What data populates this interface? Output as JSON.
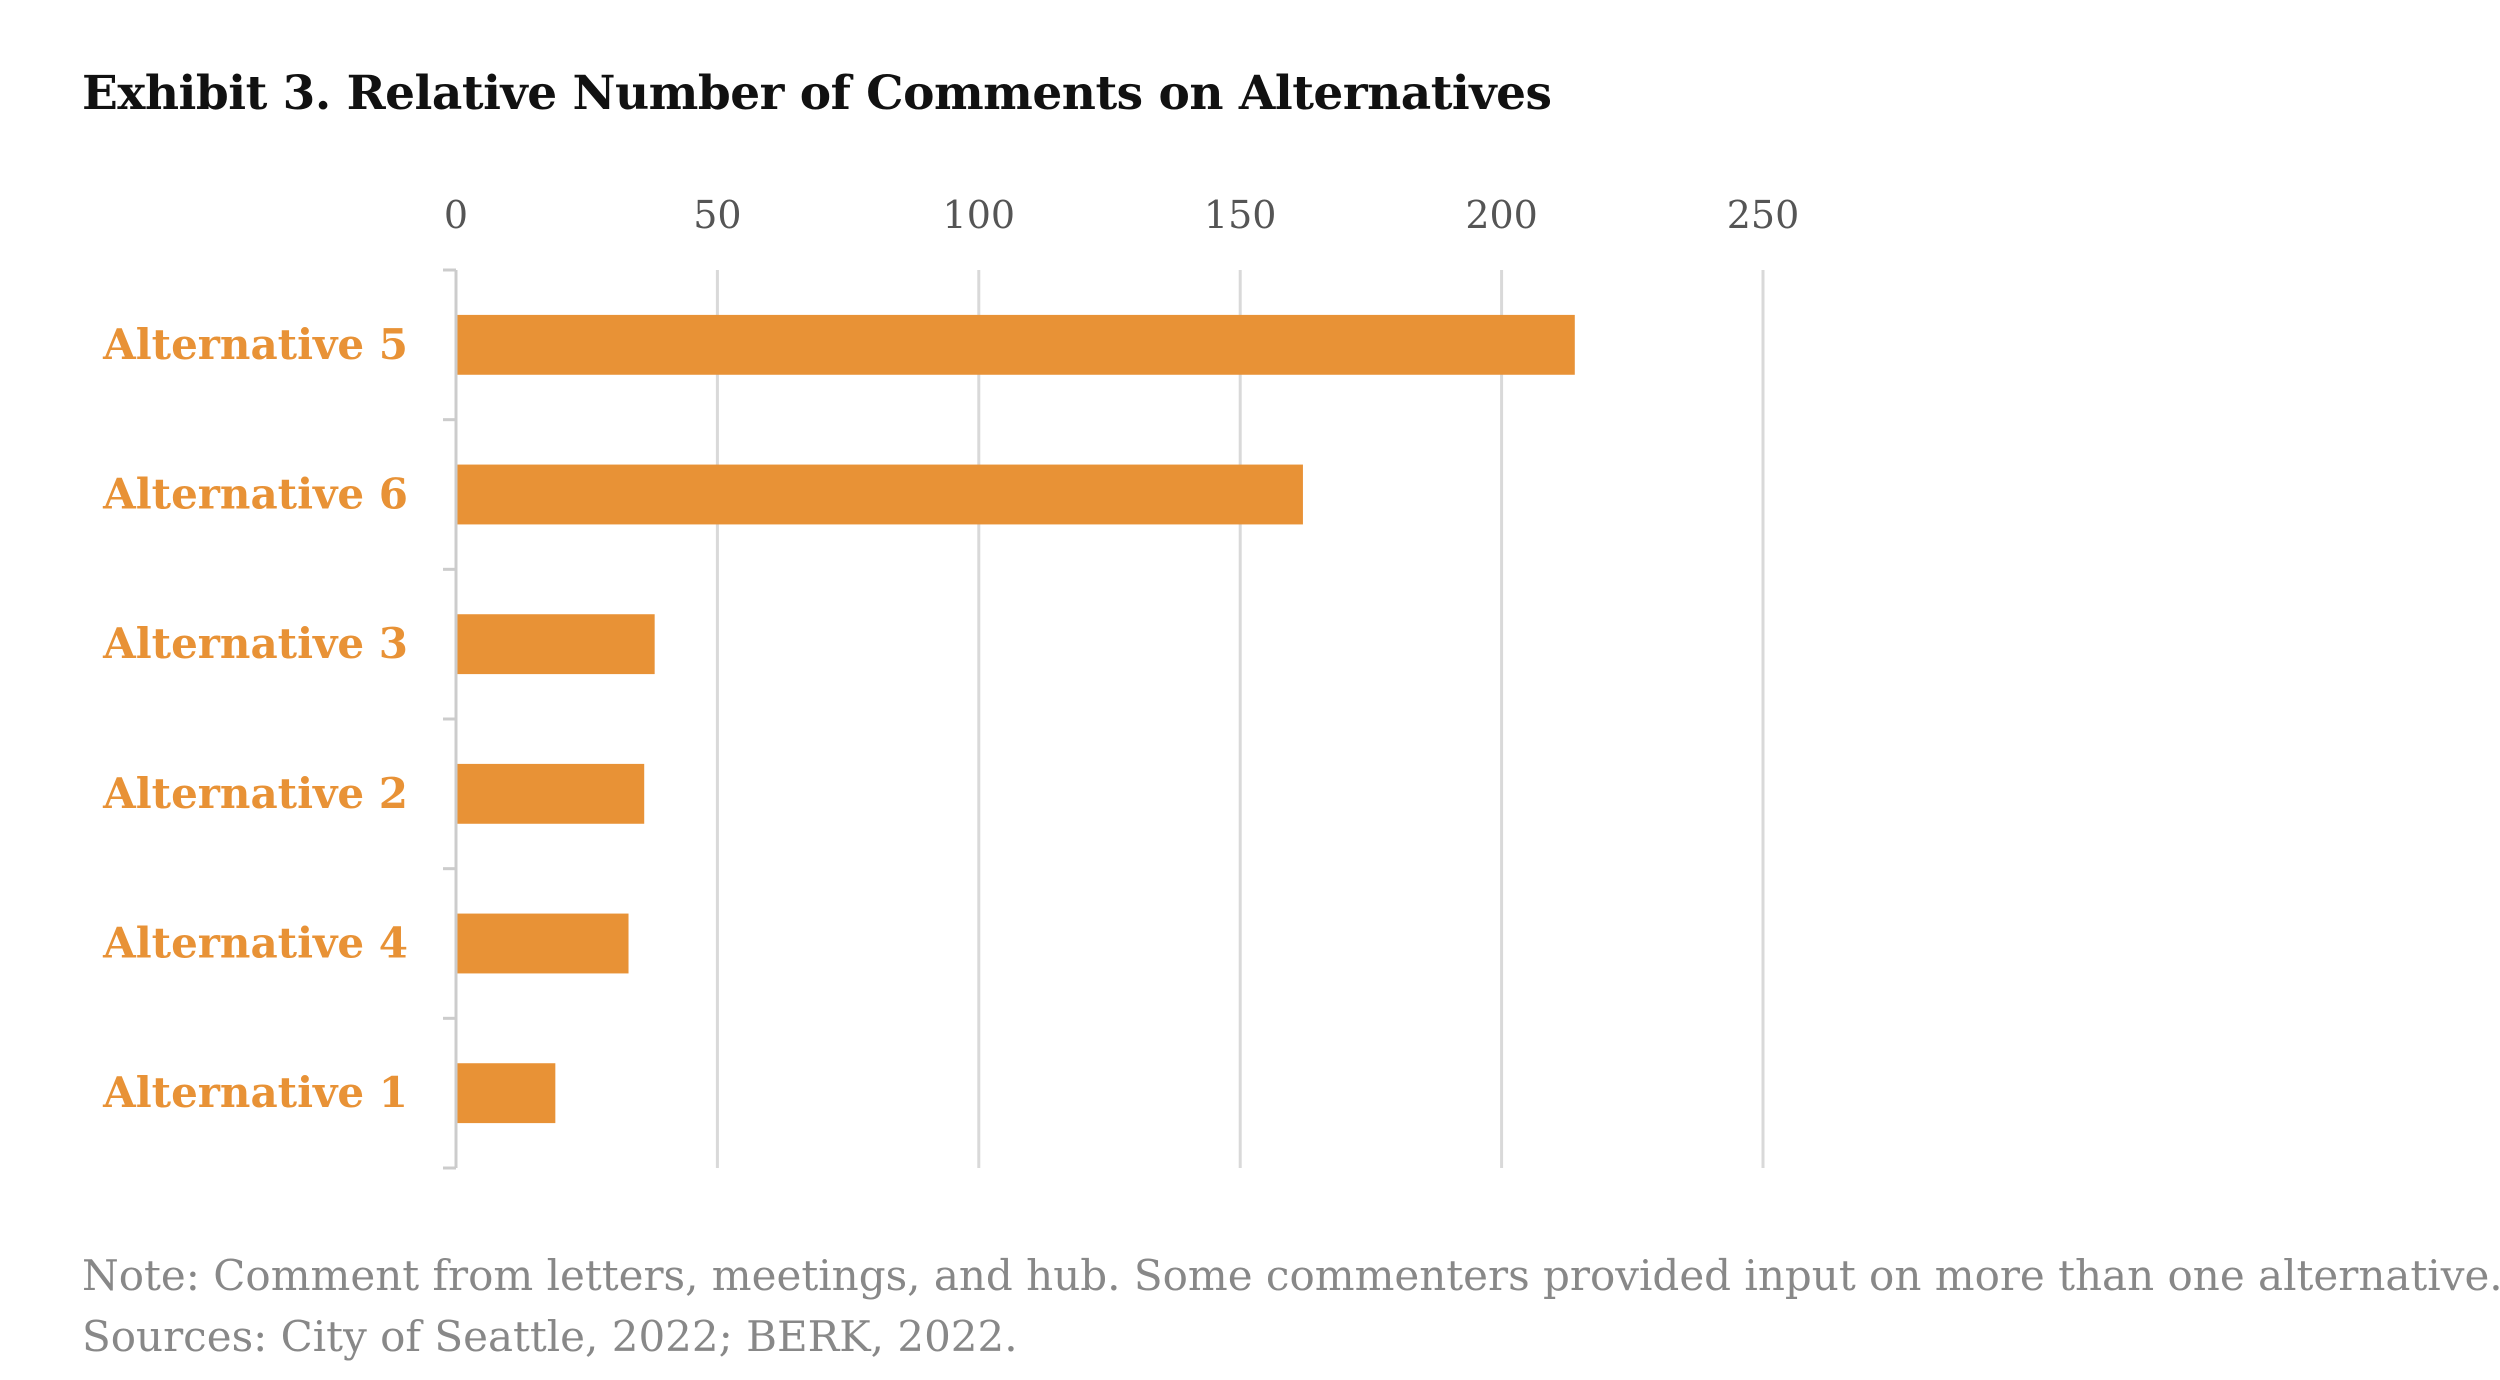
{
  "chart_data": {
    "type": "bar",
    "orientation": "horizontal",
    "title": "Exhibit 3. Relative Number of Comments on Alternatives",
    "categories": [
      "Alternative 5",
      "Alternative 6",
      "Alternative 3",
      "Alternative 2",
      "Alternative 4",
      "Alternative 1"
    ],
    "values": [
      214,
      162,
      38,
      36,
      33,
      19
    ],
    "xlim": [
      0,
      250
    ],
    "xticks": [
      "0",
      "50",
      "100",
      "150",
      "200",
      "250"
    ],
    "xaxis_position": "top",
    "grid": true,
    "legend": "none",
    "colors": {
      "bar": "#E89236",
      "category_label": "#E89236",
      "grid": "#d9d9d9",
      "axis": "#cccccc"
    }
  },
  "footer": {
    "note": "Note: Comment from letters, meetings, and hub. Some commenters provided input on more than one alternative.",
    "sources": "Sources: City of Seattle, 2022; BERK, 2022."
  }
}
